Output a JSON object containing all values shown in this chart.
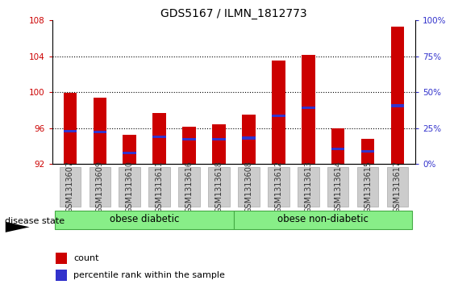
{
  "title": "GDS5167 / ILMN_1812773",
  "samples": [
    "GSM1313607",
    "GSM1313609",
    "GSM1313610",
    "GSM1313611",
    "GSM1313616",
    "GSM1313618",
    "GSM1313608",
    "GSM1313612",
    "GSM1313613",
    "GSM1313614",
    "GSM1313615",
    "GSM1313617"
  ],
  "bar_tops": [
    99.9,
    99.4,
    95.3,
    97.7,
    96.2,
    96.4,
    97.5,
    103.5,
    104.2,
    96.0,
    94.8,
    107.3
  ],
  "percentile_pos": [
    95.7,
    95.6,
    93.2,
    95.0,
    94.8,
    94.8,
    94.9,
    97.4,
    98.3,
    93.7,
    93.4,
    98.5
  ],
  "baseline": 92,
  "ylim_left": [
    92,
    108
  ],
  "ylim_right": [
    0,
    100
  ],
  "yticks_left": [
    92,
    96,
    100,
    104,
    108
  ],
  "yticks_right": [
    0,
    25,
    50,
    75,
    100
  ],
  "bar_color": "#cc0000",
  "blue_color": "#3333cc",
  "bar_width": 0.45,
  "grid_color": "#000000",
  "bg_color": "#ffffff",
  "xticklabel_color": "#333333",
  "xticklabel_bg": "#cccccc",
  "yticklabel_color_left": "#cc0000",
  "yticklabel_color_right": "#3333cc",
  "group1_label": "obese diabetic",
  "group2_label": "obese non-diabetic",
  "group1_count": 6,
  "group2_count": 6,
  "group_color": "#88ee88",
  "group_edge_color": "#44aa44",
  "disease_state_label": "disease state",
  "legend_count_label": "count",
  "legend_percentile_label": "percentile rank within the sample",
  "title_fontsize": 10,
  "tick_fontsize": 7.5,
  "legend_fontsize": 8,
  "group_label_fontsize": 8.5
}
